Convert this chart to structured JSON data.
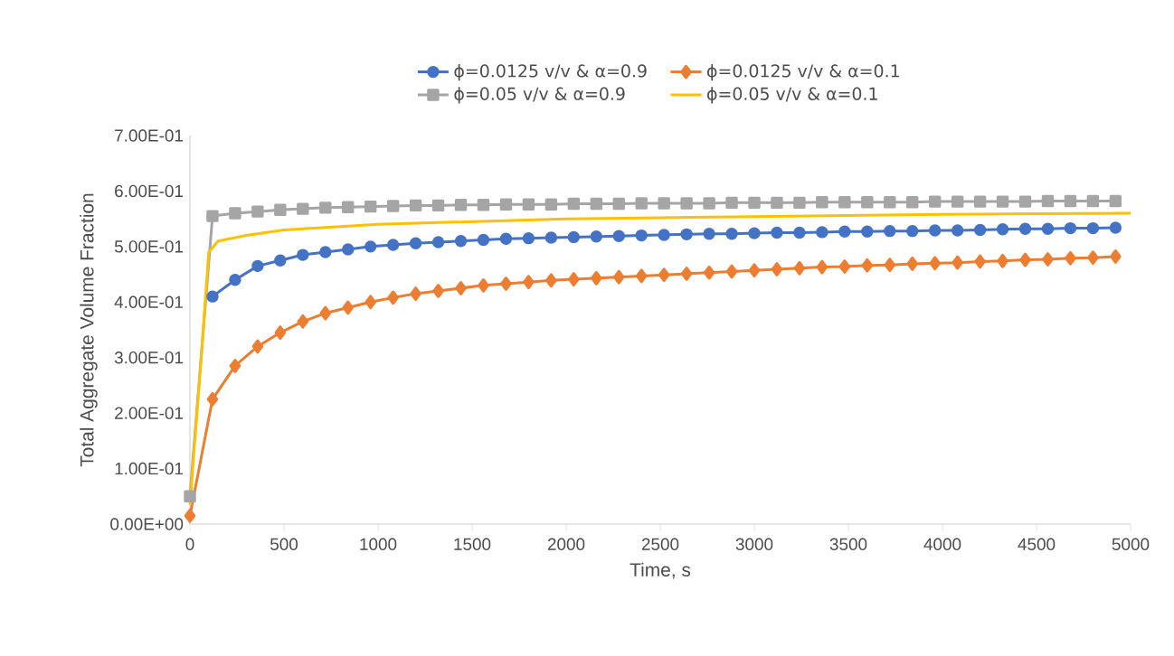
{
  "chart_data": {
    "type": "line",
    "xlabel": "Time, s",
    "ylabel": "Total Aggregate Volume Fraction",
    "xlim": [
      0,
      5000
    ],
    "xticks": [
      0,
      500,
      1000,
      1500,
      2000,
      2500,
      3000,
      3500,
      4000,
      4500,
      5000
    ],
    "ylim": [
      0,
      0.7
    ],
    "yticks": [
      {
        "value": 0,
        "label": "0.00E+00"
      },
      {
        "value": 0.1,
        "label": "1.00E-01"
      },
      {
        "value": 0.2,
        "label": "2.00E-01"
      },
      {
        "value": 0.3,
        "label": "3.00E-01"
      },
      {
        "value": 0.4,
        "label": "4.00E-01"
      },
      {
        "value": 0.5,
        "label": "5.00E-01"
      },
      {
        "value": 0.6,
        "label": "6.00E-01"
      },
      {
        "value": 0.7,
        "label": "7.00E-01"
      }
    ],
    "grid": false,
    "legend": "top",
    "x": [
      0,
      120,
      240,
      360,
      480,
      600,
      720,
      840,
      960,
      1080,
      1200,
      1320,
      1440,
      1560,
      1680,
      1800,
      1920,
      2040,
      2160,
      2280,
      2400,
      2520,
      2640,
      2760,
      2880,
      3000,
      3120,
      3240,
      3360,
      3480,
      3600,
      3720,
      3840,
      3960,
      4080,
      4200,
      4320,
      4440,
      4560,
      4680,
      4800,
      4920
    ],
    "series": [
      {
        "name": "ϕ=0.0125 v/v &  α=0.9",
        "color": "#4472c4",
        "marker": "circle",
        "values": [
          null,
          0.41,
          0.44,
          0.465,
          0.475,
          0.485,
          0.49,
          0.495,
          0.5,
          0.503,
          0.506,
          0.508,
          0.51,
          0.512,
          0.514,
          0.515,
          0.516,
          0.517,
          0.518,
          0.519,
          0.52,
          0.521,
          0.522,
          0.523,
          0.523,
          0.524,
          0.525,
          0.525,
          0.526,
          0.527,
          0.527,
          0.528,
          0.528,
          0.529,
          0.529,
          0.53,
          0.531,
          0.532,
          0.532,
          0.533,
          0.533,
          0.534
        ]
      },
      {
        "name": "ϕ=0.0125 v/v &  α=0.1",
        "color": "#ed7d31",
        "marker": "diamond",
        "values": [
          0.015,
          0.225,
          0.285,
          0.32,
          0.345,
          0.365,
          0.38,
          0.39,
          0.4,
          0.408,
          0.415,
          0.42,
          0.425,
          0.43,
          0.433,
          0.436,
          0.439,
          0.441,
          0.443,
          0.445,
          0.447,
          0.449,
          0.451,
          0.453,
          0.455,
          0.457,
          0.459,
          0.461,
          0.463,
          0.464,
          0.466,
          0.467,
          0.469,
          0.47,
          0.471,
          0.473,
          0.474,
          0.476,
          0.477,
          0.479,
          0.48,
          0.482
        ]
      },
      {
        "name": "ϕ=0.05 v/v &  α=0.9",
        "color": "#a5a5a5",
        "marker": "square",
        "values": [
          0.05,
          0.555,
          0.56,
          0.563,
          0.566,
          0.568,
          0.57,
          0.571,
          0.572,
          0.573,
          0.574,
          0.574,
          0.575,
          0.575,
          0.576,
          0.576,
          0.576,
          0.577,
          0.577,
          0.577,
          0.578,
          0.578,
          0.578,
          0.578,
          0.579,
          0.579,
          0.579,
          0.579,
          0.58,
          0.58,
          0.58,
          0.58,
          0.58,
          0.581,
          0.581,
          0.581,
          0.581,
          0.581,
          0.582,
          0.582,
          0.582,
          0.582
        ]
      },
      {
        "name": "ϕ=0.05 v/v &  α=0.1",
        "color": "#ffc000",
        "marker": "none",
        "x": [
          0,
          60,
          100,
          150,
          300,
          500,
          750,
          1000,
          1500,
          2000,
          2500,
          3000,
          3500,
          4000,
          4500,
          5000
        ],
        "values": [
          0.035,
          0.3,
          0.49,
          0.51,
          0.52,
          0.53,
          0.535,
          0.54,
          0.545,
          0.55,
          0.552,
          0.554,
          0.556,
          0.558,
          0.559,
          0.56
        ]
      }
    ]
  }
}
